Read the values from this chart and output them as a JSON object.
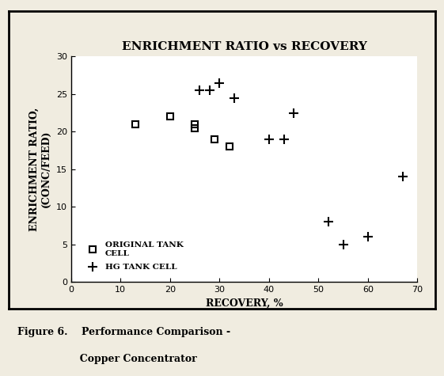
{
  "title": "ENRICHMENT RATIO vs RECOVERY",
  "xlabel": "RECOVERY, %",
  "ylabel": "ENRICHMENT RATIO,\n(CONC/FEED)",
  "xlim": [
    0,
    70
  ],
  "ylim": [
    0,
    30
  ],
  "xticks": [
    0,
    10,
    20,
    30,
    40,
    50,
    60,
    70
  ],
  "yticks": [
    0,
    5,
    10,
    15,
    20,
    25,
    30
  ],
  "original_tank_cell": {
    "x": [
      13,
      20,
      25,
      25,
      29,
      32
    ],
    "y": [
      21,
      22,
      21,
      20.5,
      19,
      18
    ],
    "label": "ORIGINAL TANK\nCELL",
    "marker": "s",
    "color": "black",
    "markersize": 6,
    "linewidth": 1.5
  },
  "hg_tank_cell": {
    "x": [
      26,
      28,
      30,
      33,
      40,
      43,
      45,
      52,
      55,
      60,
      67
    ],
    "y": [
      25.5,
      25.5,
      26.5,
      24.5,
      19,
      19,
      22.5,
      8,
      5,
      6,
      14
    ],
    "label": "HG TANK CELL",
    "marker": "+",
    "color": "black",
    "markersize": 9,
    "linewidth": 1.5
  },
  "caption_line1": "Figure 6.    Performance Comparison -",
  "caption_line2": "                  Copper Concentrator",
  "background_color": "#f0ece0",
  "plot_bg": "#ffffff",
  "title_fontsize": 11,
  "label_fontsize": 9,
  "tick_fontsize": 8,
  "legend_fontsize": 7.5,
  "caption_fontsize": 9
}
